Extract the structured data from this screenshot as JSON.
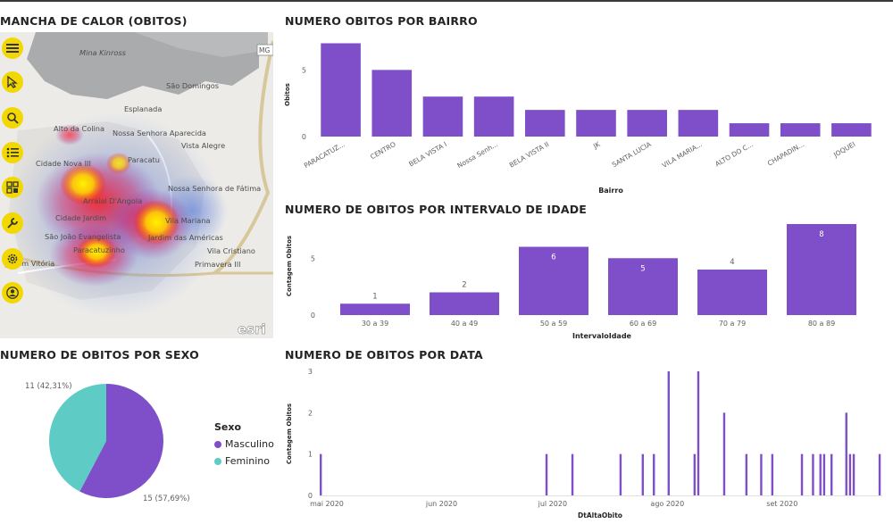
{
  "titles": {
    "heat": "MANCHA DE CALOR (OBITOS)",
    "bairro": "NUMERO OBITOS POR BAIRRO",
    "idade": "NUMERO DE OBITOS POR INTERVALO DE IDADE",
    "sexo": "NUMERO DE OBITOS POR SEXO",
    "data": "NUMERO DE OBITOS POR DATA"
  },
  "map": {
    "labels": [
      "Mina Kinross",
      "São Domingos",
      "Esplanada",
      "Alto da Colina",
      "Nossa Senhora Aparecida",
      "Vista Alegre",
      "Paracatu",
      "Cidade Nova III",
      "Arraial D'Angola",
      "Nossa Senhora de Fátima",
      "Cidade Jardim",
      "Vila Mariana",
      "Jardim das Américas",
      "São João Evangelista",
      "Paracatuzinho",
      "Vila Cristiano",
      "Primavera III",
      "Jardim Vitória"
    ],
    "watermark": "esri",
    "road_sign": "MG",
    "toolbar_icons": [
      "menu-icon",
      "pointer-icon",
      "search-icon",
      "layers-list-icon",
      "qr-grid-icon",
      "wrench-icon",
      "gear-icon",
      "user-icon"
    ]
  },
  "chart_data": [
    {
      "type": "bar",
      "title": "NUMERO OBITOS POR BAIRRO",
      "xlabel": "Bairro",
      "ylabel": "Obitos",
      "categories": [
        "PARACATUZ...",
        "CENTRO",
        "BELA VISTA I",
        "Nossa Senh...",
        "BELA VISTA II",
        "JK",
        "SANTA LUCIA",
        "VILA MARIA...",
        "ALTO DO C...",
        "CHAPADIN...",
        "JOQUEI"
      ],
      "values": [
        7,
        5,
        3,
        3,
        2,
        2,
        2,
        2,
        1,
        1,
        1
      ],
      "yticks": [
        "0",
        "5"
      ],
      "ylim": [
        0,
        7.5
      ],
      "color": "#7f4fc9"
    },
    {
      "type": "bar",
      "title": "NUMERO DE OBITOS POR INTERVALO DE IDADE",
      "xlabel": "IntervaloIdade",
      "ylabel": "Contagem Obitos",
      "categories": [
        "30 a 39",
        "40 a 49",
        "50 a 59",
        "60 a 69",
        "70 a 79",
        "80 a 89"
      ],
      "values": [
        1,
        2,
        6,
        5,
        4,
        8
      ],
      "yticks": [
        "0",
        "5"
      ],
      "ylim": [
        0,
        8
      ],
      "color": "#7f4fc9"
    },
    {
      "type": "pie",
      "title": "NUMERO DE OBITOS POR SEXO",
      "legend_title": "Sexo",
      "slices": [
        {
          "name": "Masculino",
          "value": 15,
          "label": "15 (57,69%)",
          "color": "#7f4fc9"
        },
        {
          "name": "Feminino",
          "value": 11,
          "label": "11 (42,31%)",
          "color": "#5ecbc5"
        }
      ]
    },
    {
      "type": "bar",
      "title": "NUMERO DE OBITOS POR DATA",
      "xlabel": "DtAltaObito",
      "ylabel": "Contagem Obitos",
      "xticks": [
        "mai 2020",
        "jun 2020",
        "jul 2020",
        "ago 2020",
        "set 2020"
      ],
      "x_range": [
        "2020-05-01",
        "2020-09-30"
      ],
      "ylim": [
        0,
        3
      ],
      "yticks": [
        "0",
        "1",
        "2",
        "3"
      ],
      "color": "#7f4fc9",
      "points": [
        {
          "x": "2020-05-01",
          "y": 1
        },
        {
          "x": "2020-07-01",
          "y": 1
        },
        {
          "x": "2020-07-08",
          "y": 1
        },
        {
          "x": "2020-07-21",
          "y": 1
        },
        {
          "x": "2020-07-27",
          "y": 1
        },
        {
          "x": "2020-07-30",
          "y": 1
        },
        {
          "x": "2020-08-03",
          "y": 3
        },
        {
          "x": "2020-08-10",
          "y": 1
        },
        {
          "x": "2020-08-11",
          "y": 3
        },
        {
          "x": "2020-08-18",
          "y": 2
        },
        {
          "x": "2020-08-24",
          "y": 1
        },
        {
          "x": "2020-08-28",
          "y": 1
        },
        {
          "x": "2020-08-31",
          "y": 1
        },
        {
          "x": "2020-09-08",
          "y": 1
        },
        {
          "x": "2020-09-11",
          "y": 1
        },
        {
          "x": "2020-09-13",
          "y": 1
        },
        {
          "x": "2020-09-14",
          "y": 1
        },
        {
          "x": "2020-09-16",
          "y": 1
        },
        {
          "x": "2020-09-20",
          "y": 2
        },
        {
          "x": "2020-09-21",
          "y": 1
        },
        {
          "x": "2020-09-22",
          "y": 1
        },
        {
          "x": "2020-09-29",
          "y": 1
        }
      ]
    }
  ]
}
